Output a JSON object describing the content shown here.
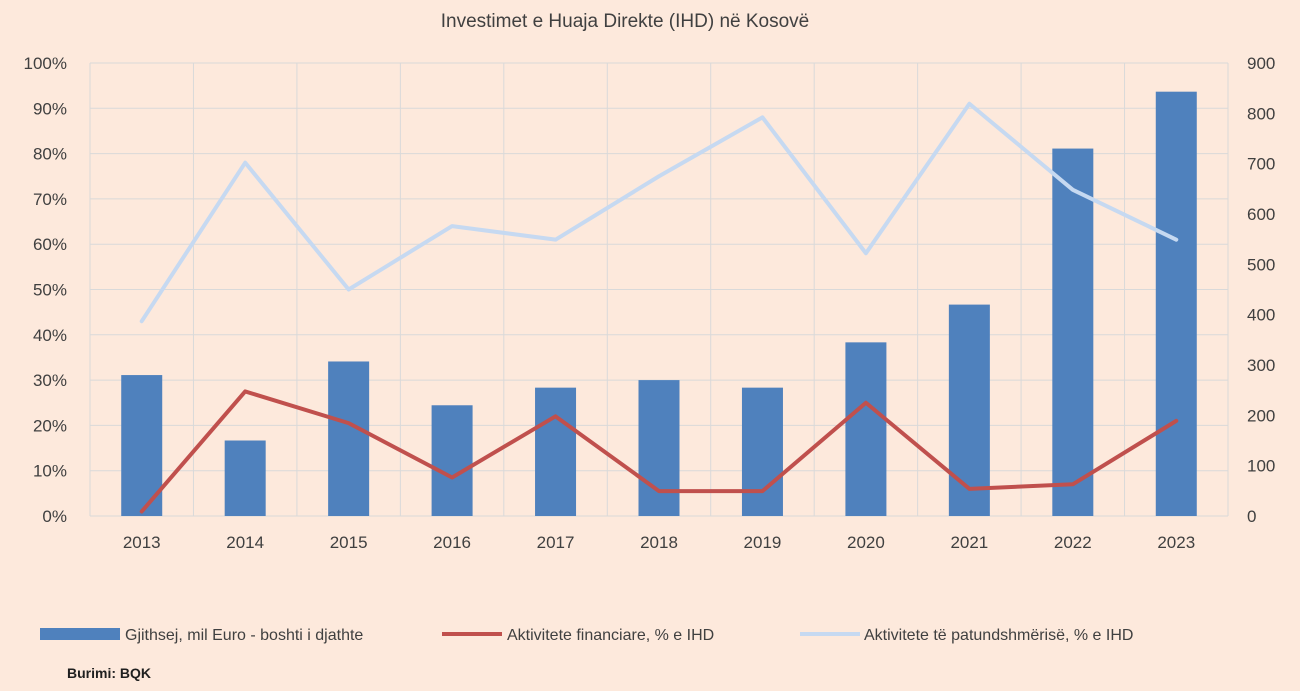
{
  "chart_data": {
    "type": "bar",
    "title": "Investimet e Huaja Direkte (IHD) në Kosovë",
    "categories": [
      "2013",
      "2014",
      "2015",
      "2016",
      "2017",
      "2018",
      "2019",
      "2020",
      "2021",
      "2022",
      "2023"
    ],
    "series": [
      {
        "name": "Gjithsej, mil Euro - boshti i djathte",
        "type": "bar",
        "axis": "right",
        "color": "#4f81bd",
        "values": [
          280,
          150,
          307,
          220,
          255,
          270,
          255,
          345,
          420,
          730,
          843
        ]
      },
      {
        "name": "Aktivitete financiare, % e IHD",
        "type": "line",
        "axis": "left",
        "color": "#c0504d",
        "values": [
          1,
          27.5,
          20.5,
          8.5,
          22,
          5.5,
          5.5,
          25,
          6,
          7,
          21
        ]
      },
      {
        "name": "Aktivitete të patundshmërisë, % e IHD",
        "type": "line",
        "axis": "left",
        "color": "#c6d9f1",
        "values": [
          43,
          78,
          50,
          64,
          61,
          75,
          88,
          58,
          91,
          72,
          61
        ]
      }
    ],
    "y_left": {
      "min": 0,
      "max": 100,
      "step": 10,
      "format": "percent",
      "ticks": [
        "0%",
        "10%",
        "20%",
        "30%",
        "40%",
        "50%",
        "60%",
        "70%",
        "80%",
        "90%",
        "100%"
      ]
    },
    "y_right": {
      "min": 0,
      "max": 900,
      "step": 100,
      "ticks": [
        "0",
        "100",
        "200",
        "300",
        "400",
        "500",
        "600",
        "700",
        "800",
        "900"
      ]
    },
    "grid": true,
    "legend_position": "bottom",
    "source": "Burimi: BQK"
  }
}
